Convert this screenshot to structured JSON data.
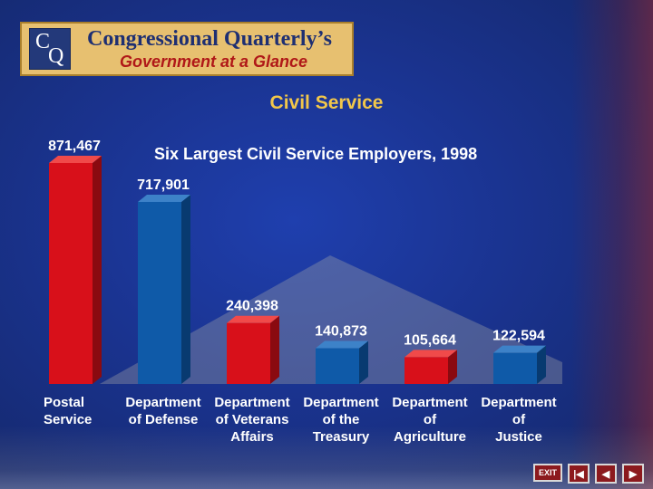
{
  "logo": {
    "mark_c": "C",
    "mark_q": "Q",
    "title": "Congressional Quarterly’s",
    "subtitle": "Government at a Glance"
  },
  "section_title": "Civil Service",
  "nav": {
    "exit_label": "EXIT"
  },
  "colors": {
    "red": "#d8101a",
    "blue": "#0f5aa8"
  },
  "chart_data": {
    "type": "bar",
    "title": "Six Largest Civil Service Employers, 1998",
    "categories": [
      [
        "Postal",
        "Service"
      ],
      [
        "Department",
        "of Defense"
      ],
      [
        "Department",
        "of Veterans",
        "Affairs"
      ],
      [
        "Department",
        "of the",
        "Treasury"
      ],
      [
        "Department",
        "of",
        "Agriculture"
      ],
      [
        "Department",
        "of",
        "Justice"
      ]
    ],
    "values": [
      871467,
      717901,
      240398,
      140873,
      105664,
      122594
    ],
    "labels": [
      "871,467",
      "717,901",
      "240,398",
      "140,873",
      "105,664",
      "122,594"
    ],
    "bar_colors": [
      "red",
      "blue",
      "red",
      "blue",
      "red",
      "blue"
    ],
    "xlabel": "",
    "ylabel": "",
    "grid": false
  }
}
